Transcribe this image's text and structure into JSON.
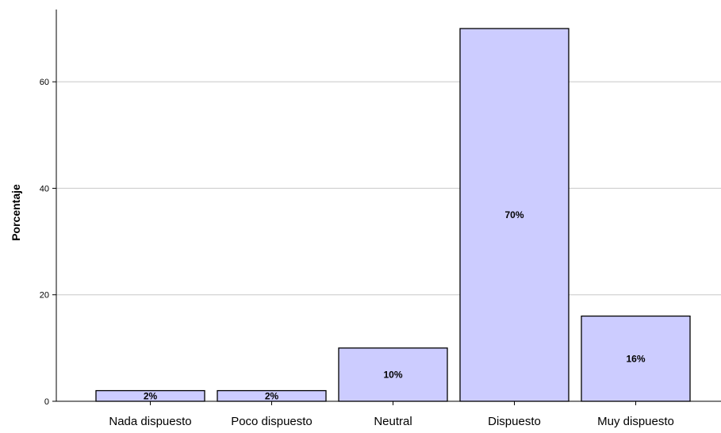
{
  "chart_data": {
    "type": "bar",
    "categories": [
      "Nada dispuesto",
      "Poco dispuesto",
      "Neutral",
      "Dispuesto",
      "Muy dispuesto"
    ],
    "values": [
      2,
      2,
      10,
      70,
      16
    ],
    "data_labels": [
      "2%",
      "2%",
      "10%",
      "70%",
      "16%"
    ],
    "title": "",
    "xlabel": "",
    "ylabel": "Porcentaje",
    "ylim": [
      0,
      70
    ],
    "yticks": [
      0,
      20,
      40,
      60
    ],
    "grid": true,
    "colors": {
      "bar_fill": "#ccccff",
      "bar_stroke": "#000000",
      "grid": "#c8c8c8",
      "axis": "#000000"
    }
  }
}
